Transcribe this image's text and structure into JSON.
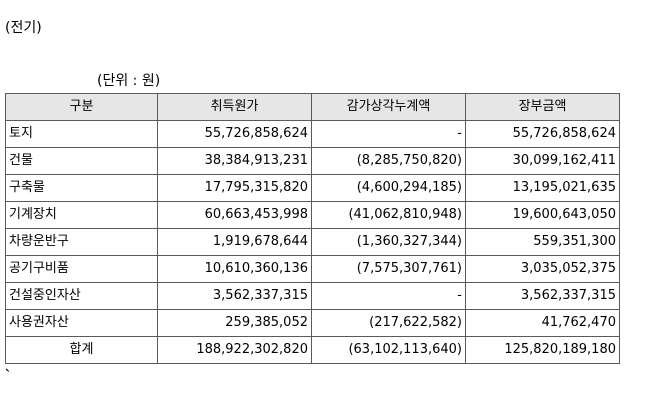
{
  "title": "(전기)",
  "unit": "(단위 : 원)",
  "table": {
    "headers": [
      "구분",
      "취득원가",
      "감가상각누계액",
      "장부금액"
    ],
    "rows": [
      [
        "토지",
        "55,726,858,624",
        "-",
        "55,726,858,624"
      ],
      [
        "건물",
        "38,384,913,231",
        "(8,285,750,820)",
        "30,099,162,411"
      ],
      [
        "구축물",
        "17,795,315,820",
        "(4,600,294,185)",
        "13,195,021,635"
      ],
      [
        "기계장치",
        "60,663,453,998",
        "(41,062,810,948)",
        "19,600,643,050"
      ],
      [
        "차량운반구",
        "1,919,678,644",
        "(1,360,327,344)",
        "559,351,300"
      ],
      [
        "공기구비품",
        "10,610,360,136",
        "(7,575,307,761)",
        "3,035,052,375"
      ],
      [
        "건설중인자산",
        "3,562,337,315",
        "-",
        "3,562,337,315"
      ],
      [
        "사용권자산",
        "259,385,052",
        "(217,622,582)",
        "41,762,470"
      ],
      [
        "합계",
        "188,922,302,820",
        "(63,102,113,640)",
        "125,820,189,180"
      ]
    ]
  },
  "footer_mark": "、"
}
